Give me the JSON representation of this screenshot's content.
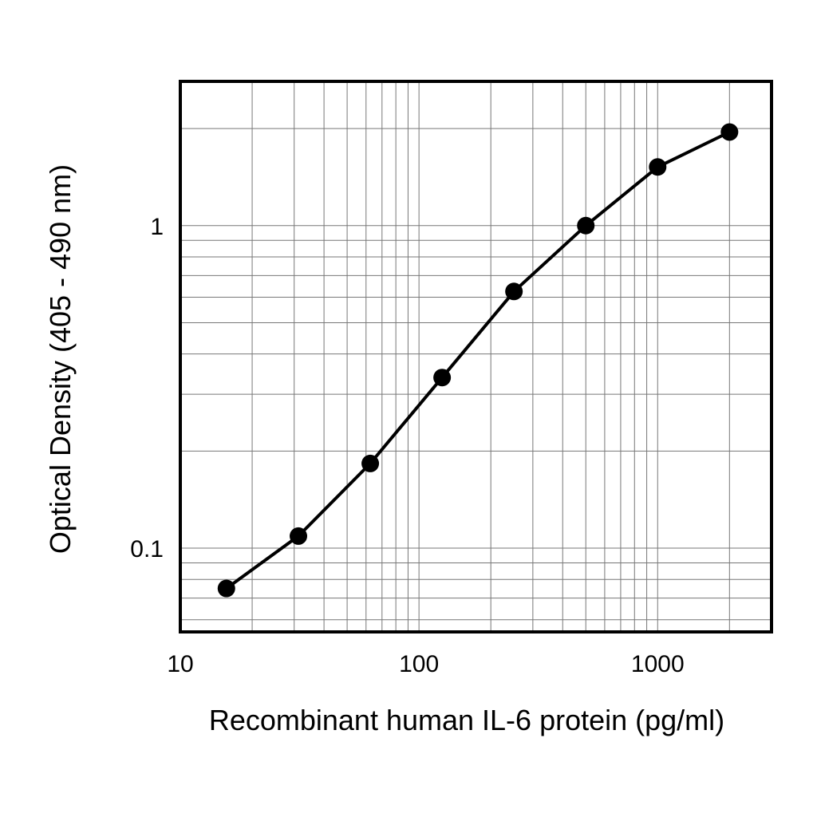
{
  "chart_data": {
    "type": "line",
    "title": "",
    "xlabel": "Recombinant human IL-6 protein (pg/ml)",
    "ylabel": "Optical Density (405 - 490 nm)",
    "xscale": "log",
    "yscale": "log",
    "xlim": [
      10,
      3000
    ],
    "ylim": [
      0.055,
      2.8
    ],
    "x_ticks": [
      {
        "value": 10,
        "label": "10"
      },
      {
        "value": 100,
        "label": "100"
      },
      {
        "value": 1000,
        "label": "1000"
      }
    ],
    "y_ticks": [
      {
        "value": 0.1,
        "label": "0.1"
      },
      {
        "value": 1,
        "label": "1"
      }
    ],
    "grid": true,
    "legend": "none",
    "color": "#000000",
    "series": [
      {
        "x": [
          15.6,
          31.25,
          62.5,
          125,
          250,
          500,
          1000,
          2000
        ],
        "y": [
          0.075,
          0.109,
          0.183,
          0.338,
          0.625,
          1.0,
          1.52,
          1.95
        ]
      }
    ]
  }
}
